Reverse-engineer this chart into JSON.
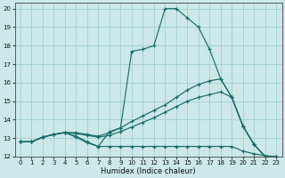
{
  "xlabel": "Humidex (Indice chaleur)",
  "xlim": [
    -0.5,
    23.5
  ],
  "ylim": [
    12,
    20.3
  ],
  "xticks": [
    0,
    1,
    2,
    3,
    4,
    5,
    6,
    7,
    8,
    9,
    10,
    11,
    12,
    13,
    14,
    15,
    16,
    17,
    18,
    19,
    20,
    21,
    22,
    23
  ],
  "yticks": [
    12,
    13,
    14,
    15,
    16,
    17,
    18,
    19,
    20
  ],
  "bg_color": "#cce8e8",
  "grid_color": "#99cccc",
  "line_color": "#1a6b6b",
  "lines": [
    {
      "x": [
        0,
        1,
        2,
        3,
        4,
        5,
        6,
        7,
        8,
        9,
        10,
        11,
        12,
        13,
        14,
        15,
        16,
        17,
        18,
        19,
        20,
        21,
        22,
        23
      ],
      "y": [
        12.8,
        12.8,
        13.05,
        13.2,
        13.3,
        13.05,
        12.75,
        12.55,
        13.35,
        13.55,
        17.7,
        17.8,
        18.0,
        20.0,
        20.0,
        19.5,
        19.0,
        17.8,
        16.2,
        15.2,
        13.65,
        12.65,
        12.0,
        12.0
      ]
    },
    {
      "x": [
        0,
        1,
        2,
        3,
        4,
        5,
        6,
        7,
        8,
        9,
        10,
        11,
        12,
        13,
        14,
        15,
        16,
        17,
        18,
        19,
        20,
        21,
        22,
        23
      ],
      "y": [
        12.8,
        12.8,
        13.05,
        13.2,
        13.3,
        13.3,
        13.2,
        13.1,
        13.3,
        13.55,
        13.9,
        14.2,
        14.5,
        14.8,
        15.2,
        15.6,
        15.9,
        16.1,
        16.2,
        15.2,
        13.65,
        12.65,
        12.0,
        12.0
      ]
    },
    {
      "x": [
        0,
        1,
        2,
        3,
        4,
        5,
        6,
        7,
        8,
        9,
        10,
        11,
        12,
        13,
        14,
        15,
        16,
        17,
        18,
        19,
        20,
        21,
        22,
        23
      ],
      "y": [
        12.8,
        12.8,
        13.05,
        13.2,
        13.3,
        13.25,
        13.15,
        13.05,
        13.15,
        13.35,
        13.6,
        13.85,
        14.1,
        14.4,
        14.7,
        15.0,
        15.2,
        15.35,
        15.5,
        15.2,
        13.65,
        12.65,
        12.0,
        12.0
      ]
    },
    {
      "x": [
        0,
        1,
        2,
        3,
        4,
        5,
        6,
        7,
        8,
        9,
        10,
        11,
        12,
        13,
        14,
        15,
        16,
        17,
        18,
        19,
        20,
        21,
        22,
        23
      ],
      "y": [
        12.8,
        12.8,
        13.05,
        13.2,
        13.3,
        13.1,
        12.8,
        12.55,
        12.55,
        12.55,
        12.55,
        12.55,
        12.55,
        12.55,
        12.55,
        12.55,
        12.55,
        12.55,
        12.55,
        12.55,
        12.3,
        12.15,
        12.05,
        12.0
      ]
    }
  ]
}
